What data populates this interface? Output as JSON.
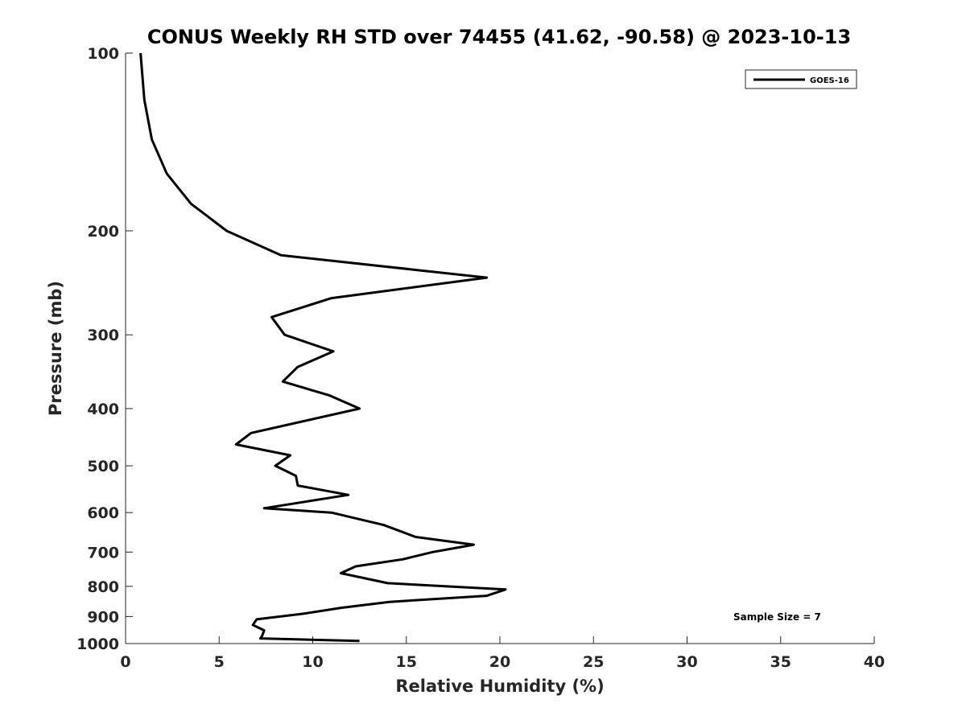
{
  "chart_data": {
    "type": "line",
    "title": "CONUS Weekly RH STD over 74455 (41.62, -90.58) @ 2023-10-13",
    "xlabel": "Relative Humidity (%)",
    "ylabel": "Pressure (mb)",
    "xlim": [
      0,
      40
    ],
    "ylim": [
      100,
      1000
    ],
    "y_scale": "log",
    "y_reversed": true,
    "x_ticks": [
      0,
      5,
      10,
      15,
      20,
      25,
      30,
      35,
      40
    ],
    "y_ticks": [
      100,
      200,
      300,
      400,
      500,
      600,
      700,
      800,
      900,
      1000
    ],
    "grid": false,
    "legend_position": "top-right",
    "annotation": "Sample Size = 7",
    "series": [
      {
        "name": "GOES-16",
        "color": "#000000",
        "points": [
          [
            0.8,
            100
          ],
          [
            1.0,
            120
          ],
          [
            1.4,
            140
          ],
          [
            2.2,
            160
          ],
          [
            3.5,
            180
          ],
          [
            5.4,
            200
          ],
          [
            8.3,
            220
          ],
          [
            19.3,
            240
          ],
          [
            11.0,
            260
          ],
          [
            7.8,
            280
          ],
          [
            8.5,
            300
          ],
          [
            11.1,
            320
          ],
          [
            9.2,
            340
          ],
          [
            8.4,
            360
          ],
          [
            10.9,
            380
          ],
          [
            12.5,
            400
          ],
          [
            6.7,
            440
          ],
          [
            5.9,
            460
          ],
          [
            8.8,
            480
          ],
          [
            8.0,
            500
          ],
          [
            9.1,
            520
          ],
          [
            9.2,
            540
          ],
          [
            11.9,
            560
          ],
          [
            7.4,
            590
          ],
          [
            11.0,
            600
          ],
          [
            13.8,
            630
          ],
          [
            15.5,
            660
          ],
          [
            18.6,
            680
          ],
          [
            16.4,
            700
          ],
          [
            14.8,
            720
          ],
          [
            12.3,
            740
          ],
          [
            11.5,
            760
          ],
          [
            14.0,
            790
          ],
          [
            20.3,
            810
          ],
          [
            19.3,
            830
          ],
          [
            14.1,
            850
          ],
          [
            11.5,
            870
          ],
          [
            9.5,
            890
          ],
          [
            7.0,
            910
          ],
          [
            6.8,
            930
          ],
          [
            7.4,
            950
          ],
          [
            7.3,
            970
          ],
          [
            7.2,
            980
          ],
          [
            12.5,
            990
          ]
        ]
      }
    ]
  }
}
